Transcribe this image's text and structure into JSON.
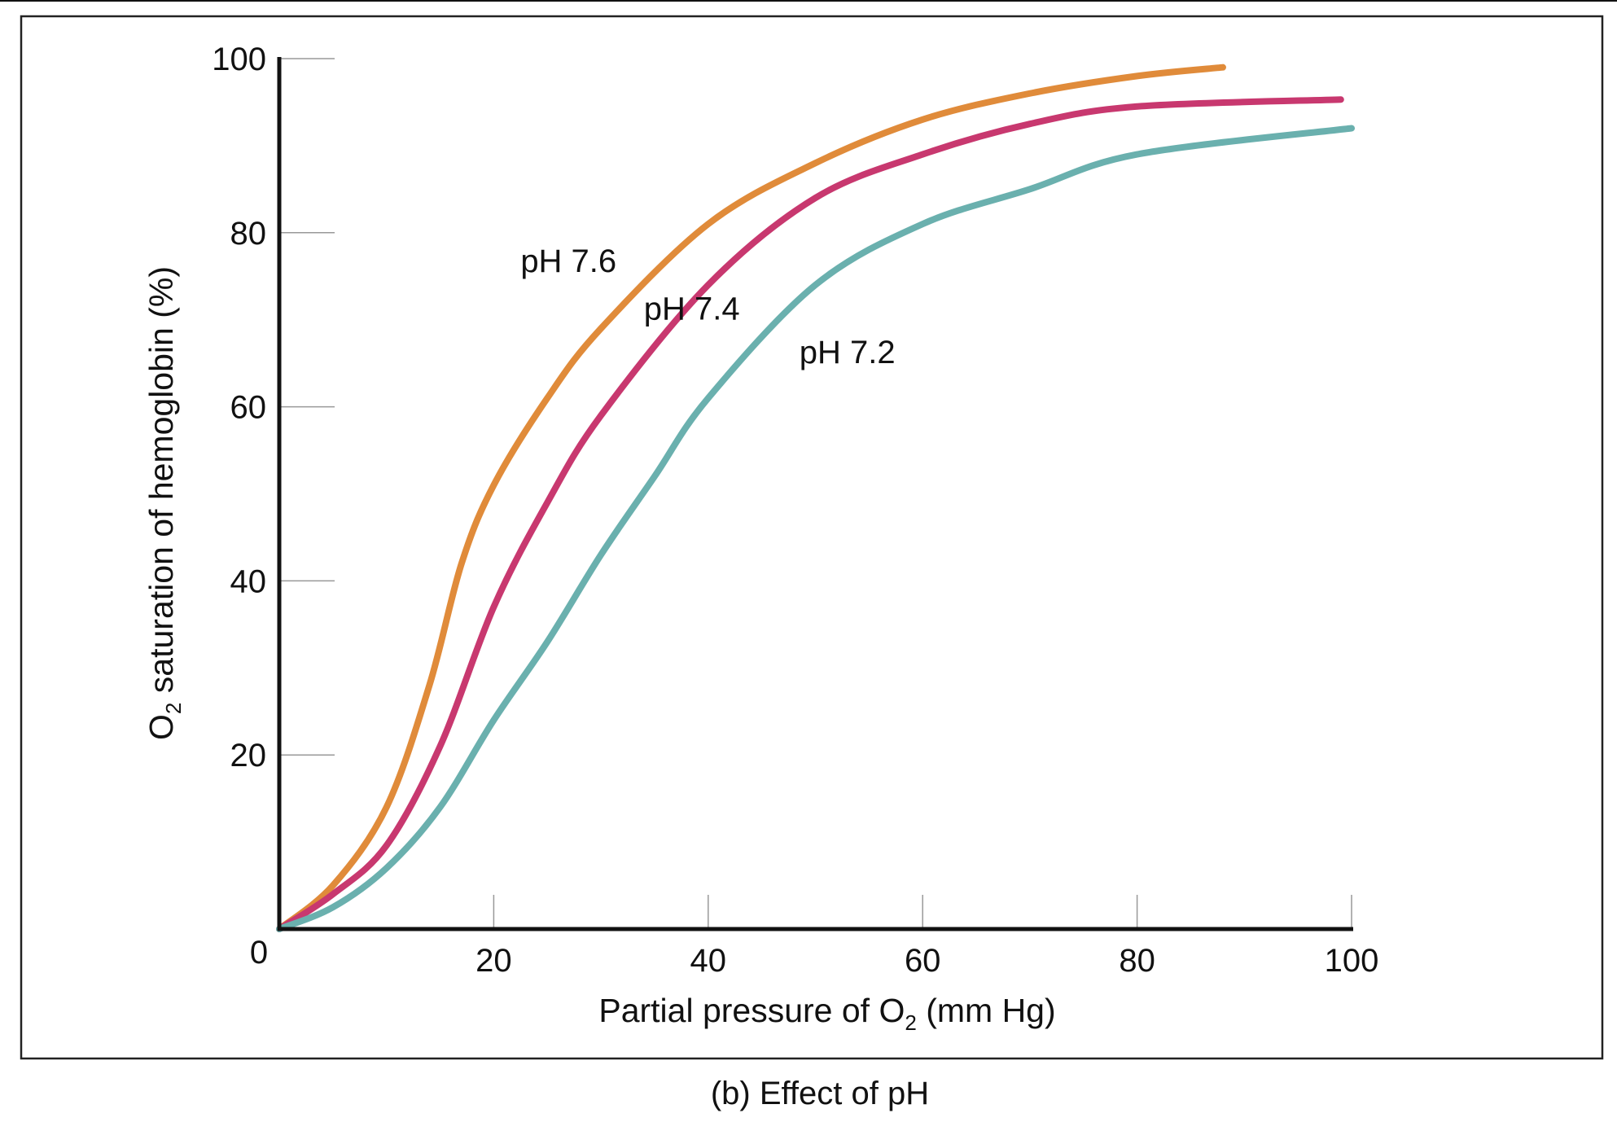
{
  "chart_data": {
    "type": "line",
    "caption": "(b) Effect of pH",
    "xlabel": {
      "main": "Partial pressure of O",
      "sub": "2",
      "tail": " (mm Hg)"
    },
    "ylabel": {
      "main": "O",
      "sub": "2",
      "tail": " saturation of hemoglobin (%)"
    },
    "xlim": [
      0,
      100
    ],
    "ylim": [
      0,
      100
    ],
    "xticks": [
      20,
      40,
      60,
      80,
      100
    ],
    "yticks": [
      20,
      40,
      60,
      80,
      100
    ],
    "origin_label": "0",
    "grid": false,
    "series": [
      {
        "name": "pH 7.6",
        "color": "#E08B3A",
        "x": [
          0,
          5,
          10,
          14,
          17,
          20,
          25,
          30,
          40,
          50,
          60,
          70,
          80,
          88
        ],
        "y": [
          0,
          5,
          14,
          28,
          42,
          51,
          61,
          69,
          81,
          88,
          93,
          96,
          98,
          99
        ]
      },
      {
        "name": "pH 7.4",
        "color": "#C8386F",
        "x": [
          0,
          5,
          10,
          15,
          20,
          25,
          30,
          40,
          50,
          60,
          70,
          80,
          99
        ],
        "y": [
          0,
          4,
          9.6,
          21,
          37,
          49,
          59,
          74,
          84,
          89,
          92.5,
          94.5,
          95.3
        ]
      },
      {
        "name": "pH 7.2",
        "color": "#6AB0AE",
        "x": [
          0,
          5,
          10,
          15,
          20,
          25,
          30,
          35,
          40,
          50,
          60,
          70,
          80,
          100
        ],
        "y": [
          0,
          2.5,
          7,
          14,
          24,
          33,
          43,
          52,
          61,
          74,
          81,
          85,
          89,
          92
        ]
      }
    ]
  }
}
